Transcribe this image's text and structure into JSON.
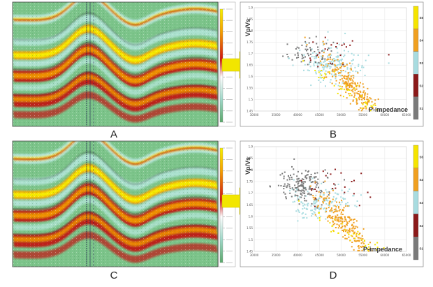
{
  "figure": {
    "panels": [
      {
        "id": "A",
        "label": "A",
        "kind": "seismic-section"
      },
      {
        "id": "B",
        "label": "B",
        "kind": "crossplot"
      },
      {
        "id": "C",
        "label": "C",
        "kind": "seismic-section"
      },
      {
        "id": "D",
        "label": "D",
        "kind": "crossplot"
      }
    ],
    "colors": {
      "arrow": "#f2e600",
      "lithology": [
        "#7a7a7a",
        "#8b1a1a",
        "#a8dce0",
        "#f0a020",
        "#f5e400"
      ],
      "seismic": [
        "#c41010",
        "#f5a000",
        "#f7f000",
        "#b8e8e0",
        "#7cc48a"
      ]
    }
  },
  "chart_data": [
    {
      "type": "scatter",
      "panel": "B",
      "title": "",
      "xlabel": "P-impedance",
      "ylabel": "Vp/Vs",
      "ylim": [
        1.44,
        1.9
      ],
      "y_ticks": [
        "1.9",
        "1.85",
        "1.8",
        "1.75",
        "1.7",
        "1.65",
        "1.6",
        "1.55",
        "1.5",
        "1.45"
      ],
      "x_ticks": [
        "30000",
        "35000",
        "40000",
        "45000",
        "50000",
        "55000",
        "60000",
        "65000"
      ],
      "legend": {
        "placement": "right",
        "entries": [
          "S5",
          "S4",
          "S3",
          "S2",
          "S1"
        ]
      },
      "series": [
        {
          "name": "S1",
          "color": "#7a7a7a",
          "cx": 41500,
          "cy": 1.7,
          "sx": 3000,
          "sy": 0.03,
          "n": 60,
          "seed": 11
        },
        {
          "name": "S2",
          "color": "#8b1a1a",
          "cx": 48000,
          "cy": 1.71,
          "sx": 5000,
          "sy": 0.04,
          "n": 22,
          "seed": 12
        },
        {
          "name": "S3",
          "color": "#a8dce0",
          "cx": 47500,
          "cy": 1.65,
          "sx": 4500,
          "sy": 0.04,
          "n": 190,
          "seed": 13
        },
        {
          "name": "S4",
          "color": "#f0a020",
          "cx": 52500,
          "cy": 1.56,
          "sx": 4000,
          "sy": 0.035,
          "n": 230,
          "seed": 14
        },
        {
          "name": "S5",
          "color": "#f5e400",
          "cx": 53500,
          "cy": 1.51,
          "sx": 5500,
          "sy": 0.02,
          "n": 45,
          "seed": 15
        }
      ]
    },
    {
      "type": "scatter",
      "panel": "D",
      "title": "",
      "xlabel": "P-impedance",
      "ylabel": "Vp/Vs",
      "ylim": [
        1.44,
        1.9
      ],
      "y_ticks": [
        "1.9",
        "1.85",
        "1.8",
        "1.75",
        "1.7",
        "1.65",
        "1.6",
        "1.55",
        "1.5",
        "1.45"
      ],
      "x_ticks": [
        "30000",
        "35000",
        "40000",
        "45000",
        "50000",
        "55000",
        "60000",
        "65000"
      ],
      "legend": {
        "placement": "right",
        "entries": [
          "S5",
          "S4",
          "S3",
          "S2",
          "S1"
        ]
      },
      "series": [
        {
          "name": "S1",
          "color": "#7a7a7a",
          "cx": 40000,
          "cy": 1.73,
          "sx": 3500,
          "sy": 0.035,
          "n": 170,
          "seed": 21
        },
        {
          "name": "S2",
          "color": "#8b1a1a",
          "cx": 47000,
          "cy": 1.71,
          "sx": 5500,
          "sy": 0.04,
          "n": 25,
          "seed": 22
        },
        {
          "name": "S3",
          "color": "#a8dce0",
          "cx": 45000,
          "cy": 1.66,
          "sx": 4500,
          "sy": 0.04,
          "n": 150,
          "seed": 23
        },
        {
          "name": "S4",
          "color": "#f0a020",
          "cx": 51500,
          "cy": 1.56,
          "sx": 4000,
          "sy": 0.035,
          "n": 230,
          "seed": 24
        },
        {
          "name": "S5",
          "color": "#f5e400",
          "cx": 53000,
          "cy": 1.51,
          "sx": 5500,
          "sy": 0.02,
          "n": 45,
          "seed": 25
        }
      ]
    }
  ]
}
